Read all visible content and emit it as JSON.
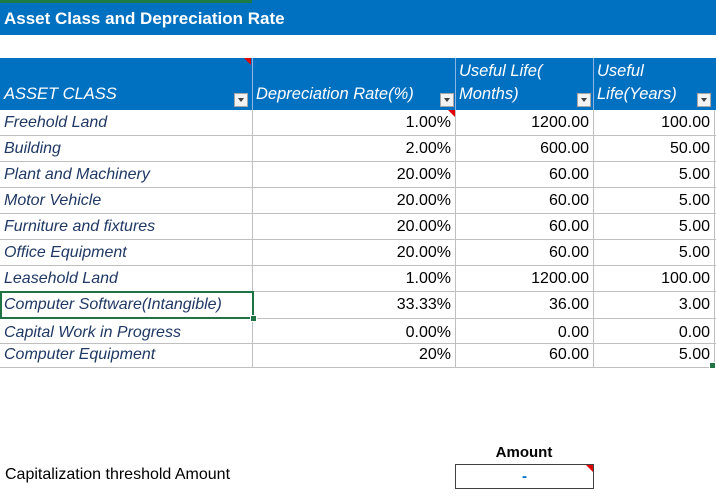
{
  "sheet": {
    "title": "Asset Class and Depreciation Rate",
    "columns": {
      "asset_class": "ASSET CLASS",
      "depreciation_rate": "Depreciation Rate(%)",
      "useful_life_months_line1": "Useful Life(",
      "useful_life_months_line2": "Months)",
      "useful_life_years_line1": "Useful",
      "useful_life_years_line2": "Life(Years)"
    },
    "rows": [
      {
        "asset": "Freehold Land",
        "rate": "1.00%",
        "months": "1200.00",
        "years": "100.00"
      },
      {
        "asset": "Building",
        "rate": "2.00%",
        "months": "600.00",
        "years": "50.00"
      },
      {
        "asset": "Plant and Machinery",
        "rate": "20.00%",
        "months": "60.00",
        "years": "5.00"
      },
      {
        "asset": "Motor Vehicle",
        "rate": "20.00%",
        "months": "60.00",
        "years": "5.00"
      },
      {
        "asset": "Furniture and fixtures",
        "rate": "20.00%",
        "months": "60.00",
        "years": "5.00"
      },
      {
        "asset": "Office Equipment",
        "rate": "20.00%",
        "months": "60.00",
        "years": "5.00"
      },
      {
        "asset": "Leasehold Land",
        "rate": "1.00%",
        "months": "1200.00",
        "years": "100.00"
      },
      {
        "asset": "Computer Software(Intangible)",
        "rate": "33.33%",
        "months": "36.00",
        "years": "3.00"
      },
      {
        "asset": "Capital Work in Progress",
        "rate": "0.00%",
        "months": "0.00",
        "years": "0.00"
      },
      {
        "asset": "Computer Equipment",
        "rate": "20%",
        "months": "60.00",
        "years": "5.00"
      }
    ],
    "amount_header": "Amount",
    "threshold_label": "Capitalization threshold Amount",
    "threshold_value": "-"
  },
  "colors": {
    "header_blue": "#0070c0",
    "grid_line": "#bfbfbf",
    "selection_green": "#217346",
    "comment_red": "#e00000"
  }
}
